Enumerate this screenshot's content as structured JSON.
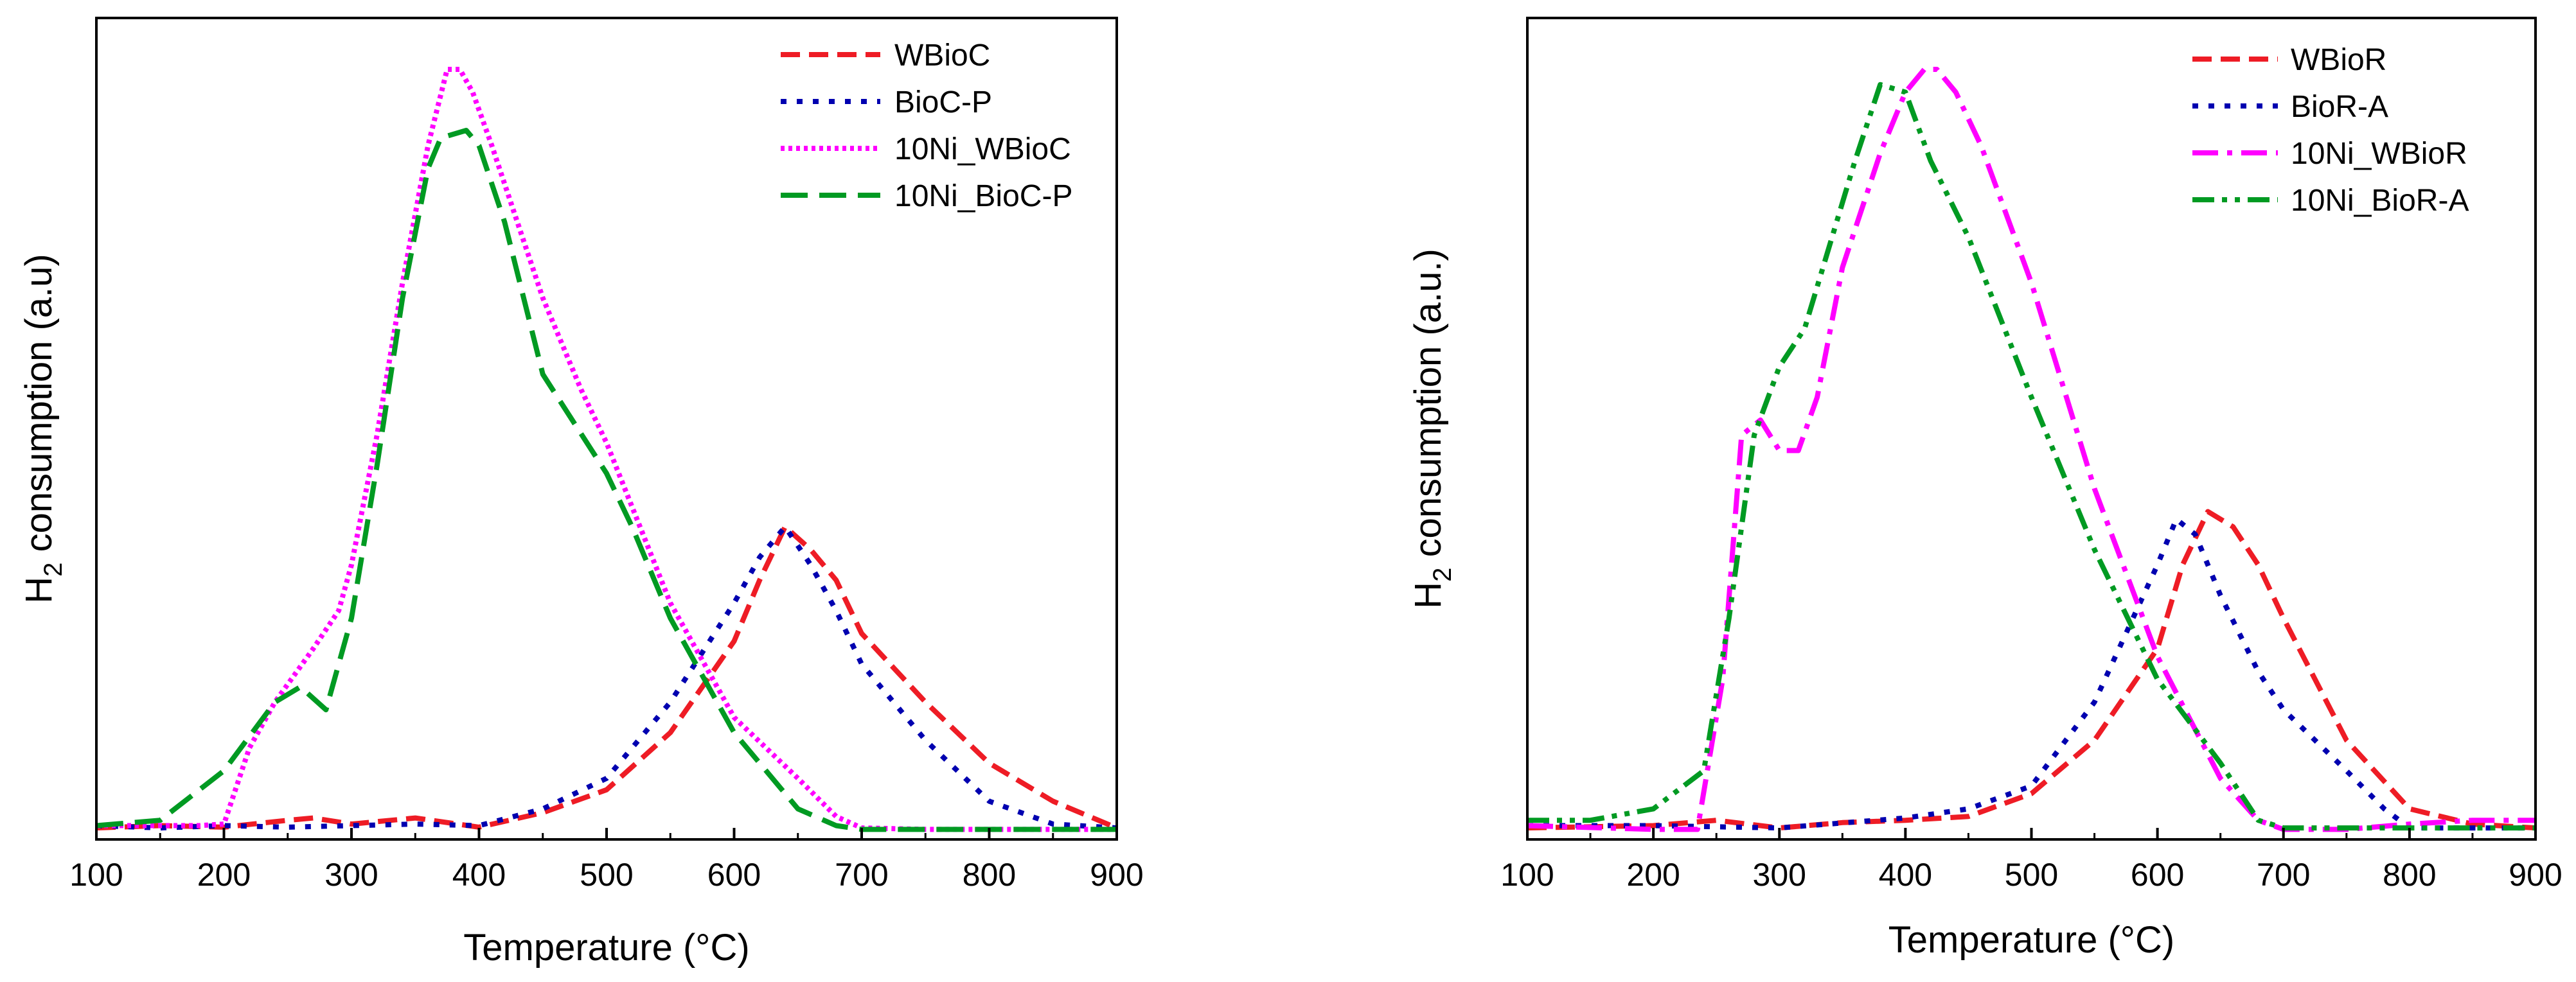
{
  "chart_data": [
    {
      "type": "line",
      "xlabel": "Temperature (°C)",
      "ylabel_main": "H",
      "ylabel_sub": "2",
      "ylabel_rest": " consumption (a.u)",
      "xlim": [
        100,
        900
      ],
      "ylim": [
        0,
        100
      ],
      "xticks": [
        "100",
        "200",
        "300",
        "400",
        "500",
        "600",
        "700",
        "800",
        "900"
      ],
      "legend_position": "top-right",
      "series": [
        {
          "name": "WBioC",
          "color": "#ee1c25",
          "dash": "dashed",
          "x": [
            100,
            150,
            200,
            250,
            270,
            300,
            350,
            400,
            450,
            500,
            550,
            600,
            620,
            640,
            660,
            680,
            700,
            750,
            800,
            850,
            900
          ],
          "y": [
            0.5,
            0.8,
            0.6,
            1.5,
            1.8,
            1,
            1.8,
            0.6,
            2.5,
            5.5,
            13,
            25,
            33,
            40,
            37,
            33,
            26,
            17,
            9,
            4,
            0.5
          ]
        },
        {
          "name": "BioC-P",
          "color": "#0000b0",
          "dash": "dotted",
          "x": [
            100,
            150,
            200,
            250,
            300,
            350,
            400,
            450,
            500,
            550,
            600,
            620,
            640,
            660,
            680,
            700,
            750,
            800,
            850,
            900
          ],
          "y": [
            0.8,
            0.5,
            0.8,
            0.6,
            0.8,
            1,
            0.8,
            3,
            7,
            17,
            30,
            36,
            40,
            35,
            29,
            22,
            12,
            4,
            1,
            0.5
          ]
        },
        {
          "name": "10Ni_WBioC",
          "color": "#ff00ff",
          "dash": "densely-dotted",
          "x": [
            100,
            180,
            200,
            220,
            240,
            270,
            290,
            300,
            320,
            340,
            360,
            375,
            385,
            395,
            410,
            430,
            450,
            480,
            500,
            550,
            600,
            650,
            680,
            700,
            750,
            800,
            900
          ],
          "y": [
            0.8,
            0.8,
            1,
            11,
            17,
            24,
            29,
            35,
            52,
            72,
            90,
            100,
            100,
            97,
            90,
            80,
            70,
            58,
            51,
            30,
            15,
            7,
            2,
            0.5,
            0.3,
            0.3,
            0.3
          ]
        },
        {
          "name": "10Ni_BioC-P",
          "color": "#009a22",
          "dash": "long-dash",
          "x": [
            100,
            150,
            200,
            240,
            260,
            280,
            300,
            320,
            340,
            360,
            370,
            390,
            400,
            420,
            450,
            500,
            520,
            550,
            600,
            650,
            680,
            700,
            800,
            900
          ],
          "y": [
            0.8,
            1.5,
            8,
            17,
            19,
            16,
            28,
            48,
            70,
            87,
            91,
            92,
            90,
            80,
            60,
            47,
            40,
            28,
            13,
            3,
            0.8,
            0.3,
            0.3,
            0.3
          ]
        }
      ]
    },
    {
      "type": "line",
      "xlabel": "Temperature (°C)",
      "ylabel_main": "H",
      "ylabel_sub": "2",
      "ylabel_rest": " consumption (a.u.)",
      "xlim": [
        100,
        900
      ],
      "ylim": [
        0,
        100
      ],
      "xticks": [
        "100",
        "200",
        "300",
        "400",
        "500",
        "600",
        "700",
        "800",
        "900"
      ],
      "legend_position": "top-right",
      "series": [
        {
          "name": "WBioR",
          "color": "#ee1c25",
          "dash": "dashed",
          "x": [
            100,
            200,
            250,
            300,
            350,
            400,
            450,
            500,
            550,
            600,
            620,
            640,
            660,
            680,
            700,
            750,
            800,
            850,
            900
          ],
          "y": [
            0.5,
            0.8,
            1.5,
            0.5,
            1.2,
            1.5,
            2,
            5,
            12,
            24,
            35,
            42,
            40,
            35,
            28,
            12,
            3,
            1,
            0.5
          ]
        },
        {
          "name": "BioR-A",
          "color": "#0000b0",
          "dash": "dotted",
          "x": [
            100,
            200,
            300,
            400,
            450,
            500,
            550,
            600,
            615,
            630,
            650,
            680,
            700,
            750,
            780,
            800,
            900
          ],
          "y": [
            0.8,
            0.8,
            0.5,
            1.8,
            3,
            6,
            17,
            35,
            41,
            39,
            31,
            21,
            16,
            8,
            3,
            0.5,
            0.5
          ]
        },
        {
          "name": "10Ni_WBioR",
          "color": "#ff00ff",
          "dash": "dash-dot",
          "x": [
            100,
            200,
            235,
            255,
            270,
            285,
            300,
            315,
            330,
            350,
            380,
            400,
            415,
            425,
            440,
            460,
            500,
            550,
            600,
            650,
            680,
            700,
            750,
            800,
            850,
            900
          ],
          "y": [
            0.8,
            0.3,
            0.3,
            20,
            52,
            54,
            50,
            50,
            57,
            74,
            89,
            97,
            100,
            100,
            97,
            90,
            72,
            45,
            23,
            7,
            1.5,
            0.3,
            0.3,
            1,
            1.5,
            1.5
          ]
        },
        {
          "name": "10Ni_BioR-A",
          "color": "#009a22",
          "dash": "dash-dot-dot",
          "x": [
            100,
            150,
            200,
            240,
            260,
            280,
            300,
            320,
            340,
            360,
            380,
            400,
            420,
            450,
            500,
            550,
            600,
            650,
            680,
            700,
            750,
            800,
            900
          ],
          "y": [
            1.5,
            1.5,
            3,
            8,
            28,
            52,
            61,
            66,
            77,
            88,
            98,
            97,
            88,
            78,
            57,
            37,
            20,
            9,
            1.5,
            0.5,
            0.5,
            0.5,
            0.5
          ]
        }
      ]
    }
  ]
}
